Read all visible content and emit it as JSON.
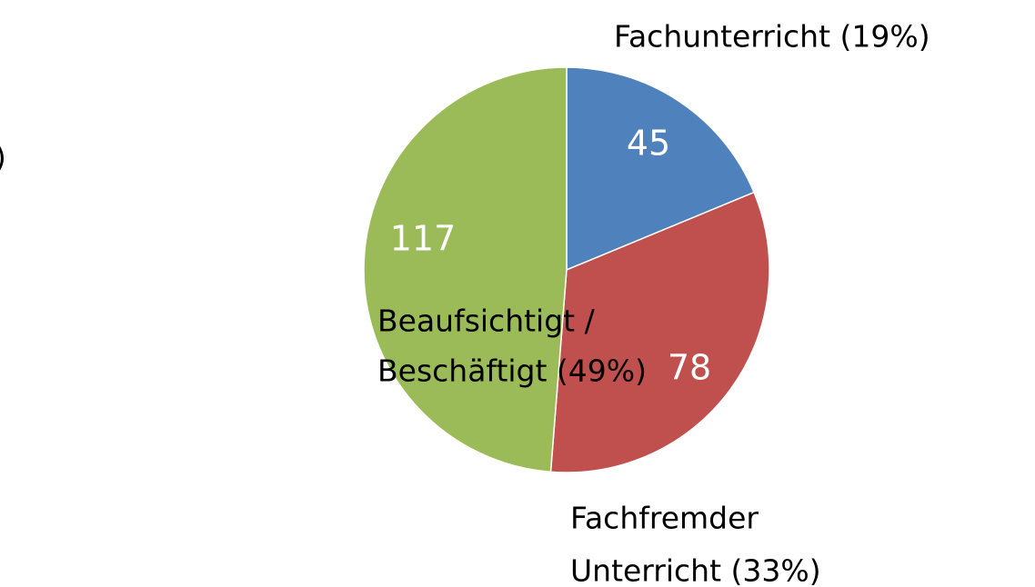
{
  "chart_data": {
    "type": "pie",
    "labels": [
      [
        "Fachunterricht (19%)"
      ],
      [
        "Fachfremder",
        "Unterricht (33%)"
      ],
      [
        "Beaufsichtigt /",
        "Beschäftigt (49%)"
      ]
    ],
    "values": [
      45,
      78,
      117
    ],
    "colors": [
      "#4f81bd",
      "#c0504d",
      "#9bbb59"
    ],
    "annotations": [
      ")"
    ]
  }
}
